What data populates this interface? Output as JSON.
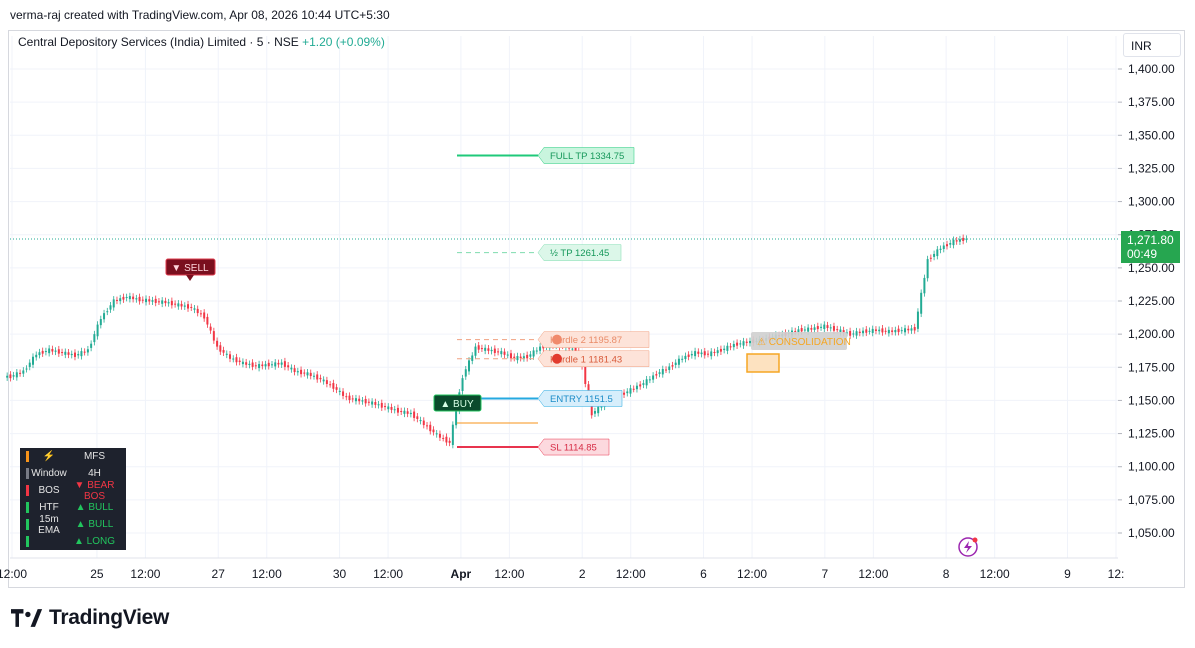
{
  "header": {
    "text": "verma-raj created with TradingView.com, Apr 08, 2026 10:44 UTC+5:30"
  },
  "symbol": {
    "name": "Central Depository Services (India) Limited · 5 · NSE",
    "change": "+1.20 (+0.09%)"
  },
  "currency": "INR",
  "last_price": {
    "value": "1,271.80",
    "countdown": "00:49",
    "color": "#26a650"
  },
  "colors": {
    "up": "#22ab94",
    "down": "#f23645",
    "full_tp": "#1fc97a",
    "half_tp": "#7fdcae",
    "entry": "#25a9e0",
    "sl": "#e8344e",
    "hurdle": "#f0a080"
  },
  "levels": [
    {
      "name": "full-tp",
      "label": "FULL TP  1334.75",
      "price": 1334.75
    },
    {
      "name": "half-tp",
      "label": "½ TP  1261.45",
      "price": 1261.45
    },
    {
      "name": "hurdle-2",
      "label": "Hurdle 2  1195.87",
      "price": 1195.87
    },
    {
      "name": "hurdle-1",
      "label": "Hurdle 1  1181.43",
      "price": 1181.43
    },
    {
      "name": "entry",
      "label": "ENTRY  1151.5",
      "price": 1151.5
    },
    {
      "name": "sl",
      "label": "SL  1114.85",
      "price": 1114.85
    }
  ],
  "signals": {
    "sell": "▼ SELL",
    "buy": "▲ BUY",
    "consolidation": "⚠ CONSOLIDATION"
  },
  "status_panel": [
    {
      "key": "⚡",
      "value": "MFS",
      "bar": "#f7931a"
    },
    {
      "key": "Window",
      "value": "4H",
      "bar": "#787b86"
    },
    {
      "key": "BOS",
      "value": "▼ BEAR BOS",
      "bar": "#f23645",
      "vcolor": "#f23645"
    },
    {
      "key": "HTF",
      "value": "▲ BULL",
      "bar": "#22c55e",
      "vcolor": "#22c55e"
    },
    {
      "key": "15m EMA",
      "value": "▲ BULL",
      "bar": "#22c55e",
      "vcolor": "#22c55e"
    },
    {
      "key": "",
      "value": "▲ LONG",
      "bar": "#22c55e",
      "vcolor": "#22c55e"
    }
  ],
  "brand": "TradingView",
  "chart_data": {
    "type": "line",
    "title": "Central Depository Services (India) Limited · 5 · NSE",
    "y_ticks": [
      1050,
      1075,
      1100,
      1125,
      1150,
      1175,
      1200,
      1225,
      1250,
      1275,
      1300,
      1325,
      1350,
      1375,
      1400
    ],
    "y_tick_labels": [
      "1,050.00",
      "1,075.00",
      "1,100.00",
      "1,125.00",
      "1,150.00",
      "1,175.00",
      "1,200.00",
      "1,225.00",
      "1,250.00",
      "1,275.00",
      "1,300.00",
      "1,325.00",
      "1,350.00",
      "1,375.00",
      "1,400.00"
    ],
    "ylim": [
      1030,
      1410
    ],
    "x_tick_labels": [
      "12:00",
      "25",
      "12:00",
      "27",
      "12:00",
      "30",
      "12:00",
      "Apr",
      "12:00",
      "2",
      "12:00",
      "6",
      "12:00",
      "7",
      "12:00",
      "8",
      "12:00",
      "9",
      "12:"
    ],
    "x_tick_index": [
      0,
      7,
      11,
      17,
      21,
      27,
      31,
      37,
      41,
      47,
      51,
      57,
      61,
      67,
      71,
      77,
      81,
      87,
      91
    ],
    "x_count": 92,
    "series": [
      {
        "values": [
          1168,
          1172,
          1185,
          1188,
          1186,
          1184,
          1188,
          1212,
          1225,
          1228,
          1226,
          1225,
          1224,
          1222,
          1220,
          1213,
          1190,
          1182,
          1178,
          1176,
          1177,
          1178,
          1172,
          1170,
          1166,
          1160,
          1152,
          1150,
          1148,
          1145,
          1142,
          1140,
          1132,
          1124,
          1118,
          1168,
          1190,
          1188,
          1186,
          1182,
          1183,
          1190,
          1192,
          1191,
          1186,
          1140,
          1148,
          1153,
          1158,
          1163,
          1170,
          1175,
          1182,
          1186,
          1185,
          1188,
          1192,
          1194,
          1195,
          1198,
          1200,
          1203,
          1204,
          1206,
          1203,
          1200,
          1202,
          1203,
          1202,
          1203,
          1204,
          1256,
          1265,
          1270,
          1272
        ]
      }
    ]
  }
}
